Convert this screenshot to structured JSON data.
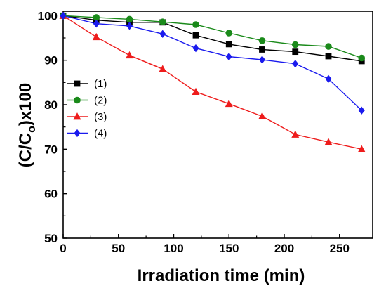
{
  "chart_data": {
    "type": "line",
    "xlabel": "Irradiation time (min)",
    "ylabel": {
      "main": "(C/C",
      "sub": "o",
      "tail": ")x100"
    },
    "xlim": [
      0,
      280
    ],
    "ylim": [
      50,
      101
    ],
    "xticks": [
      0,
      50,
      100,
      150,
      200,
      250
    ],
    "yticks": [
      50,
      60,
      70,
      80,
      90,
      100
    ],
    "x": [
      0,
      30,
      60,
      90,
      120,
      150,
      180,
      210,
      240,
      270
    ],
    "series": [
      {
        "name": "(1)",
        "color": "#000000",
        "marker": "square",
        "values": [
          100,
          99.0,
          98.5,
          98.5,
          95.6,
          93.6,
          92.4,
          91.9,
          90.9,
          89.8
        ]
      },
      {
        "name": "(2)",
        "color": "#1a8a1a",
        "marker": "circle",
        "values": [
          100,
          99.6,
          99.2,
          98.6,
          98.0,
          96.1,
          94.4,
          93.5,
          93.1,
          90.5
        ]
      },
      {
        "name": "(3)",
        "color": "#ee1c1c",
        "marker": "triangle",
        "values": [
          100,
          95.2,
          91.1,
          88.0,
          82.9,
          80.2,
          77.4,
          73.3,
          71.6,
          70.0
        ]
      },
      {
        "name": "(4)",
        "color": "#1a1aee",
        "marker": "diamond",
        "values": [
          100,
          98.2,
          97.7,
          95.9,
          92.7,
          90.8,
          90.1,
          89.2,
          85.8,
          78.7
        ]
      }
    ],
    "legend": "center-left",
    "grid": false
  }
}
